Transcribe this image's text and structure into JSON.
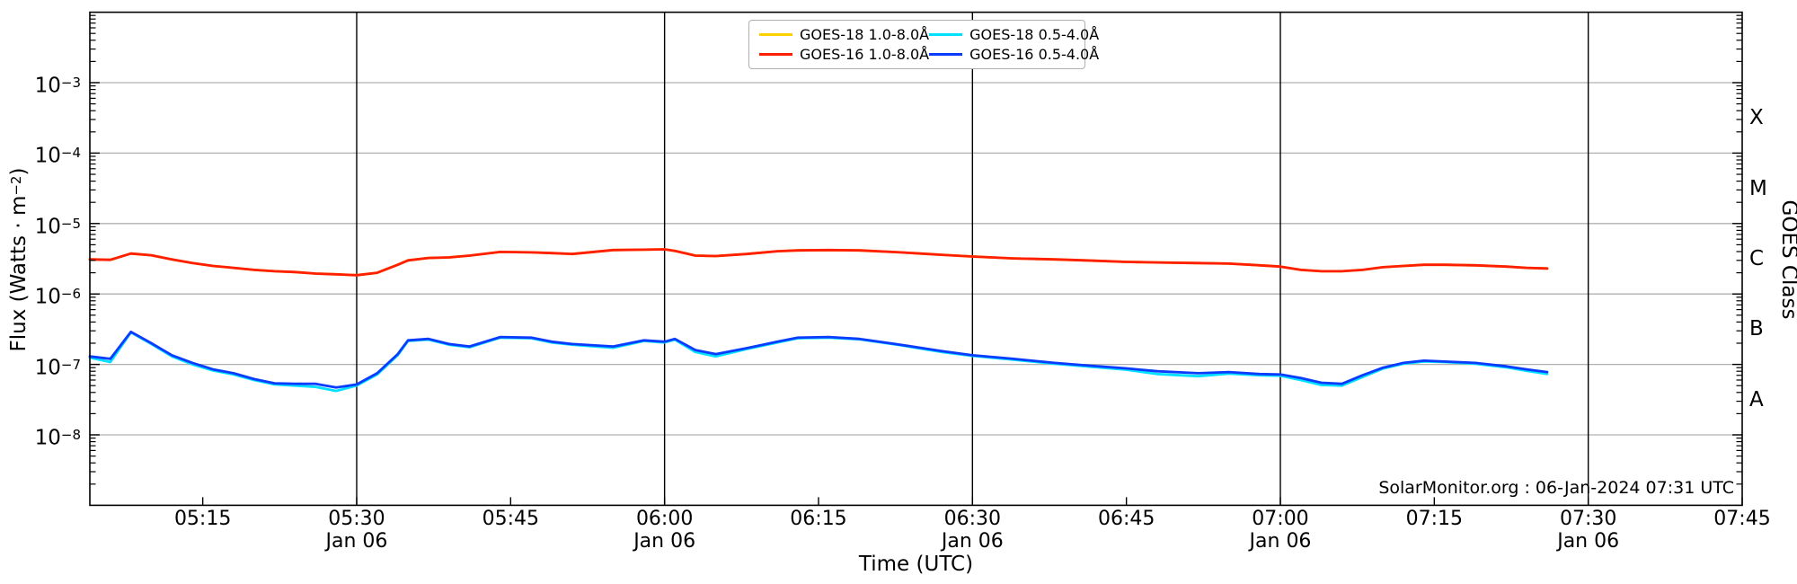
{
  "annotation": "SolarMonitor.org : 06-Jan-2024 07:31 UTC",
  "colors": {
    "goes18_long": "#ffd000",
    "goes16_long": "#ff1e00",
    "goes18_short": "#00e0ff",
    "goes16_short": "#0a3cff",
    "gridline": "#b0b0b0",
    "day_marker": "#000000",
    "frame": "#000000"
  },
  "chart_data": {
    "type": "line",
    "title": "",
    "xlabel": "Time (UTC)",
    "ylabel_left": {
      "text": "Flux (Watts · m",
      "exp": "−2",
      "close": ")"
    },
    "ylabel_right": "GOES Class",
    "x_range": [
      "05:04",
      "07:45"
    ],
    "y_range": [
      1e-09,
      0.01
    ],
    "grid": "horizontal gray lines at each labeled decade; black vertical lines at day-marker ticks",
    "legend_position": "upper center, two columns",
    "y_ticks_exponents": [
      -3,
      -4,
      -5,
      -6,
      -7,
      -8
    ],
    "goes_classes": [
      "X",
      "M",
      "C",
      "B",
      "A"
    ],
    "x_ticks": [
      {
        "label": "05:15"
      },
      {
        "label": "05:30",
        "date": "Jan 06"
      },
      {
        "label": "05:45"
      },
      {
        "label": "06:00",
        "date": "Jan 06"
      },
      {
        "label": "06:15"
      },
      {
        "label": "06:30",
        "date": "Jan 06"
      },
      {
        "label": "06:45"
      },
      {
        "label": "07:00",
        "date": "Jan 06"
      },
      {
        "label": "07:15"
      },
      {
        "label": "07:30",
        "date": "Jan 06"
      },
      {
        "label": "07:45"
      }
    ],
    "legend": [
      {
        "label": "GOES-18 1.0-8.0Å",
        "color_key": "goes18_long"
      },
      {
        "label": "GOES-16 1.0-8.0Å",
        "color_key": "goes16_long"
      },
      {
        "label": "GOES-18 0.5-4.0Å",
        "color_key": "goes18_short"
      },
      {
        "label": "GOES-16 0.5-4.0Å",
        "color_key": "goes16_short"
      }
    ],
    "times": [
      "05:04",
      "05:06",
      "05:08",
      "05:10",
      "05:12",
      "05:14",
      "05:16",
      "05:18",
      "05:20",
      "05:22",
      "05:24",
      "05:26",
      "05:28",
      "05:30",
      "05:32",
      "05:34",
      "05:35",
      "05:37",
      "05:39",
      "05:41",
      "05:44",
      "05:47",
      "05:49",
      "05:51",
      "05:55",
      "05:58",
      "06:00",
      "06:01",
      "06:03",
      "06:05",
      "06:08",
      "06:11",
      "06:13",
      "06:16",
      "06:19",
      "06:23",
      "06:27",
      "06:30",
      "06:34",
      "06:38",
      "06:41",
      "06:45",
      "06:48",
      "06:52",
      "06:55",
      "06:58",
      "07:00",
      "07:02",
      "07:04",
      "07:06",
      "07:08",
      "07:10",
      "07:12",
      "07:14",
      "07:16",
      "07:19",
      "07:22",
      "07:24",
      "07:26"
    ],
    "series": [
      {
        "name": "GOES-18 1.0-8.0Å",
        "color_key": "goes18_long",
        "values": [
          3.1e-06,
          3.05e-06,
          3.75e-06,
          3.55e-06,
          3.1e-06,
          2.75e-06,
          2.5e-06,
          2.35e-06,
          2.2e-06,
          2.1e-06,
          2.05e-06,
          1.95e-06,
          1.9e-06,
          1.85e-06,
          2e-06,
          2.6e-06,
          3e-06,
          3.25e-06,
          3.3e-06,
          3.5e-06,
          3.95e-06,
          3.9e-06,
          3.8e-06,
          3.7e-06,
          4.2e-06,
          4.25e-06,
          4.3e-06,
          4.1e-06,
          3.5e-06,
          3.45e-06,
          3.7e-06,
          4.05e-06,
          4.15e-06,
          4.2e-06,
          4.15e-06,
          3.9e-06,
          3.6e-06,
          3.4e-06,
          3.2e-06,
          3.1e-06,
          3e-06,
          2.85e-06,
          2.8e-06,
          2.75e-06,
          2.7e-06,
          2.55e-06,
          2.45e-06,
          2.2e-06,
          2.1e-06,
          2.1e-06,
          2.2e-06,
          2.4e-06,
          2.5e-06,
          2.6e-06,
          2.6e-06,
          2.55e-06,
          2.45e-06,
          2.35e-06,
          2.3e-06
        ]
      },
      {
        "name": "GOES-18 0.5-4.0Å",
        "color_key": "goes18_short",
        "values": [
          1.25e-07,
          1.08e-07,
          2.85e-07,
          1.95e-07,
          1.3e-07,
          1e-07,
          8.2e-08,
          7.2e-08,
          6e-08,
          5.2e-08,
          5e-08,
          4.8e-08,
          4.2e-08,
          5e-08,
          7.2e-08,
          1.35e-07,
          2.15e-07,
          2.25e-07,
          1.9e-07,
          1.75e-07,
          2.4e-07,
          2.35e-07,
          2.05e-07,
          1.9e-07,
          1.72e-07,
          2.15e-07,
          2.05e-07,
          2.25e-07,
          1.5e-07,
          1.3e-07,
          1.65e-07,
          2.05e-07,
          2.35e-07,
          2.4e-07,
          2.27e-07,
          1.87e-07,
          1.5e-07,
          1.32e-07,
          1.17e-07,
          1.02e-07,
          9.4e-08,
          8.4e-08,
          7.3e-08,
          6.8e-08,
          7.4e-08,
          7e-08,
          6.9e-08,
          6e-08,
          5.1e-08,
          5e-08,
          6.6e-08,
          8.7e-08,
          1.02e-07,
          1.1e-07,
          1.08e-07,
          1.02e-07,
          9.1e-08,
          8.1e-08,
          7.3e-08
        ]
      },
      {
        "name": "GOES-16 1.0-8.0Å",
        "color_key": "goes16_long",
        "values": [
          3.1e-06,
          3.05e-06,
          3.75e-06,
          3.55e-06,
          3.1e-06,
          2.75e-06,
          2.5e-06,
          2.35e-06,
          2.2e-06,
          2.1e-06,
          2.05e-06,
          1.95e-06,
          1.9e-06,
          1.85e-06,
          2e-06,
          2.6e-06,
          3e-06,
          3.25e-06,
          3.3e-06,
          3.5e-06,
          3.95e-06,
          3.9e-06,
          3.8e-06,
          3.7e-06,
          4.2e-06,
          4.25e-06,
          4.3e-06,
          4.1e-06,
          3.5e-06,
          3.45e-06,
          3.7e-06,
          4.05e-06,
          4.15e-06,
          4.2e-06,
          4.15e-06,
          3.9e-06,
          3.6e-06,
          3.4e-06,
          3.2e-06,
          3.1e-06,
          3e-06,
          2.85e-06,
          2.8e-06,
          2.75e-06,
          2.7e-06,
          2.55e-06,
          2.45e-06,
          2.2e-06,
          2.1e-06,
          2.1e-06,
          2.2e-06,
          2.4e-06,
          2.5e-06,
          2.6e-06,
          2.6e-06,
          2.55e-06,
          2.45e-06,
          2.35e-06,
          2.3e-06
        ]
      },
      {
        "name": "GOES-16 0.5-4.0Å",
        "color_key": "goes16_short",
        "values": [
          1.3e-07,
          1.2e-07,
          2.9e-07,
          2e-07,
          1.35e-07,
          1.05e-07,
          8.5e-08,
          7.5e-08,
          6.2e-08,
          5.4e-08,
          5.3e-08,
          5.3e-08,
          4.7e-08,
          5.2e-08,
          7.5e-08,
          1.4e-07,
          2.2e-07,
          2.3e-07,
          1.95e-07,
          1.8e-07,
          2.45e-07,
          2.4e-07,
          2.1e-07,
          1.95e-07,
          1.8e-07,
          2.2e-07,
          2.1e-07,
          2.3e-07,
          1.6e-07,
          1.4e-07,
          1.7e-07,
          2.1e-07,
          2.4e-07,
          2.45e-07,
          2.3e-07,
          1.9e-07,
          1.55e-07,
          1.35e-07,
          1.2e-07,
          1.05e-07,
          9.7e-08,
          8.8e-08,
          8e-08,
          7.5e-08,
          7.8e-08,
          7.3e-08,
          7.2e-08,
          6.4e-08,
          5.5e-08,
          5.3e-08,
          7e-08,
          9e-08,
          1.05e-07,
          1.13e-07,
          1.1e-07,
          1.05e-07,
          9.4e-08,
          8.5e-08,
          7.8e-08
        ]
      }
    ]
  }
}
